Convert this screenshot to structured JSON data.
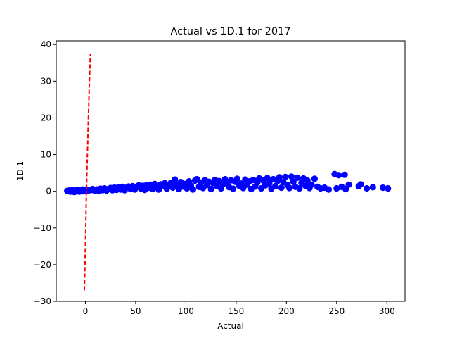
{
  "chart_data": {
    "type": "scatter",
    "title": "Actual vs 1D.1 for 2017",
    "xlabel": "Actual",
    "ylabel": "1D.1",
    "xlim": [
      -29,
      318
    ],
    "ylim": [
      -30,
      41
    ],
    "xticks": [
      0,
      50,
      100,
      150,
      200,
      250,
      300
    ],
    "yticks": [
      -30,
      -20,
      -10,
      0,
      10,
      20,
      30,
      40
    ],
    "grid": false,
    "legend": "none",
    "colors": {
      "points": "#0000ff",
      "reference_line": "#ff0000"
    },
    "reference_line": {
      "style": "dashed",
      "points": [
        [
          -1,
          -27
        ],
        [
          0,
          -15
        ],
        [
          1,
          0
        ],
        [
          2,
          10
        ],
        [
          3,
          20
        ],
        [
          4,
          30
        ],
        [
          5,
          37.5
        ]
      ]
    },
    "series": [
      {
        "marker": "circle",
        "points": [
          [
            -18,
            0.1
          ],
          [
            -16,
            0.2
          ],
          [
            -15,
            -0.1
          ],
          [
            -14,
            0.0
          ],
          [
            -13,
            0.3
          ],
          [
            -12,
            0.1
          ],
          [
            -11,
            -0.2
          ],
          [
            -10,
            0.2
          ],
          [
            -9,
            0.0
          ],
          [
            -8,
            0.4
          ],
          [
            -7,
            0.1
          ],
          [
            -6,
            -0.1
          ],
          [
            -5,
            0.3
          ],
          [
            -4,
            0.2
          ],
          [
            -3,
            0.5
          ],
          [
            -2,
            0.0
          ],
          [
            -1,
            0.3
          ],
          [
            0,
            0.2
          ],
          [
            1,
            0.5
          ],
          [
            2,
            0.1
          ],
          [
            3,
            0.4
          ],
          [
            5,
            0.3
          ],
          [
            7,
            0.6
          ],
          [
            9,
            0.2
          ],
          [
            11,
            0.5
          ],
          [
            13,
            0.1
          ],
          [
            15,
            0.7
          ],
          [
            17,
            0.3
          ],
          [
            19,
            0.8
          ],
          [
            21,
            0.2
          ],
          [
            23,
            0.6
          ],
          [
            25,
            0.9
          ],
          [
            27,
            0.3
          ],
          [
            29,
            1.0
          ],
          [
            31,
            0.4
          ],
          [
            33,
            1.1
          ],
          [
            35,
            0.5
          ],
          [
            37,
            1.2
          ],
          [
            39,
            0.3
          ],
          [
            41,
            1.0
          ],
          [
            43,
            1.3
          ],
          [
            45,
            0.6
          ],
          [
            47,
            1.4
          ],
          [
            49,
            0.5
          ],
          [
            51,
            1.2
          ],
          [
            53,
            1.6
          ],
          [
            55,
            0.8
          ],
          [
            57,
            1.5
          ],
          [
            59,
            0.4
          ],
          [
            61,
            1.7
          ],
          [
            63,
            1.0
          ],
          [
            65,
            1.8
          ],
          [
            67,
            0.6
          ],
          [
            69,
            2.0
          ],
          [
            71,
            1.2
          ],
          [
            73,
            0.5
          ],
          [
            75,
            1.9
          ],
          [
            77,
            1.4
          ],
          [
            79,
            2.2
          ],
          [
            81,
            0.7
          ],
          [
            83,
            1.6
          ],
          [
            85,
            2.3
          ],
          [
            87,
            1.0
          ],
          [
            89,
            3.2
          ],
          [
            91,
            1.8
          ],
          [
            93,
            0.6
          ],
          [
            95,
            2.5
          ],
          [
            97,
            1.3
          ],
          [
            99,
            2.0
          ],
          [
            101,
            0.8
          ],
          [
            103,
            2.7
          ],
          [
            105,
            1.5
          ],
          [
            107,
            0.5
          ],
          [
            109,
            2.9
          ],
          [
            111,
            3.3
          ],
          [
            113,
            1.2
          ],
          [
            115,
            2.4
          ],
          [
            117,
            0.9
          ],
          [
            119,
            3.0
          ],
          [
            121,
            1.7
          ],
          [
            123,
            2.6
          ],
          [
            125,
            0.6
          ],
          [
            127,
            2.2
          ],
          [
            129,
            3.1
          ],
          [
            131,
            1.4
          ],
          [
            133,
            2.8
          ],
          [
            135,
            0.8
          ],
          [
            137,
            1.9
          ],
          [
            139,
            3.3
          ],
          [
            141,
            2.3
          ],
          [
            143,
            1.1
          ],
          [
            145,
            3.0
          ],
          [
            147,
            0.7
          ],
          [
            149,
            2.6
          ],
          [
            151,
            3.4
          ],
          [
            153,
            1.5
          ],
          [
            155,
            2.1
          ],
          [
            157,
            0.9
          ],
          [
            159,
            3.2
          ],
          [
            161,
            1.8
          ],
          [
            163,
            2.7
          ],
          [
            165,
            0.6
          ],
          [
            167,
            3.1
          ],
          [
            169,
            1.3
          ],
          [
            171,
            2.4
          ],
          [
            173,
            3.5
          ],
          [
            175,
            0.8
          ],
          [
            177,
            2.9
          ],
          [
            179,
            1.6
          ],
          [
            181,
            3.6
          ],
          [
            183,
            2.2
          ],
          [
            185,
            0.7
          ],
          [
            187,
            3.3
          ],
          [
            189,
            1.4
          ],
          [
            191,
            2.8
          ],
          [
            193,
            3.8
          ],
          [
            195,
            1.0
          ],
          [
            197,
            2.5
          ],
          [
            199,
            3.9
          ],
          [
            201,
            1.7
          ],
          [
            203,
            0.9
          ],
          [
            205,
            4.0
          ],
          [
            207,
            2.6
          ],
          [
            209,
            1.2
          ],
          [
            211,
            3.7
          ],
          [
            213,
            0.8
          ],
          [
            215,
            2.3
          ],
          [
            217,
            3.5
          ],
          [
            219,
            1.5
          ],
          [
            221,
            2.9
          ],
          [
            223,
            0.9
          ],
          [
            225,
            1.8
          ],
          [
            228,
            3.4
          ],
          [
            231,
            1.2
          ],
          [
            234,
            0.8
          ],
          [
            238,
            1.0
          ],
          [
            242,
            0.5
          ],
          [
            248,
            4.7
          ],
          [
            250,
            0.8
          ],
          [
            252,
            4.4
          ],
          [
            255,
            1.2
          ],
          [
            258,
            4.5
          ],
          [
            259,
            0.6
          ],
          [
            262,
            1.8
          ],
          [
            272,
            1.4
          ],
          [
            274,
            1.9
          ],
          [
            280,
            0.8
          ],
          [
            286,
            1.1
          ],
          [
            296,
            1.0
          ],
          [
            301,
            0.8
          ]
        ]
      }
    ]
  }
}
